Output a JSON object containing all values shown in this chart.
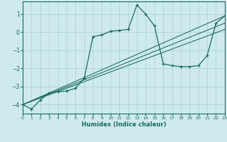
{
  "xlabel": "Humidex (Indice chaleur)",
  "background_color": "#ceeaec",
  "grid_color": "#aad0d4",
  "line_color": "#1a6b5e",
  "xlim": [
    0,
    23
  ],
  "ylim": [
    -4.5,
    1.7
  ],
  "yticks": [
    -4,
    -3,
    -2,
    -1,
    0,
    1
  ],
  "xticks": [
    0,
    1,
    2,
    3,
    4,
    5,
    6,
    7,
    8,
    9,
    10,
    11,
    12,
    13,
    14,
    15,
    16,
    17,
    18,
    19,
    20,
    21,
    22,
    23
  ],
  "series_x": [
    0,
    1,
    2,
    3,
    4,
    5,
    6,
    7,
    8,
    9,
    10,
    11,
    12,
    13,
    14,
    15,
    16,
    17,
    18,
    19,
    20,
    21,
    22,
    23
  ],
  "series_y": [
    -4.0,
    -4.25,
    -3.75,
    -3.35,
    -3.3,
    -3.25,
    -3.1,
    -2.55,
    -0.25,
    -0.15,
    0.05,
    0.1,
    0.15,
    1.5,
    1.0,
    0.35,
    -1.75,
    -1.85,
    -1.9,
    -1.9,
    -1.85,
    -1.3,
    0.5,
    0.9
  ],
  "ref_lines": [
    {
      "x": [
        0,
        23
      ],
      "y": [
        -4.0,
        0.9
      ]
    },
    {
      "x": [
        0,
        23
      ],
      "y": [
        -4.0,
        0.5
      ]
    },
    {
      "x": [
        0,
        23
      ],
      "y": [
        -4.0,
        0.15
      ]
    }
  ]
}
